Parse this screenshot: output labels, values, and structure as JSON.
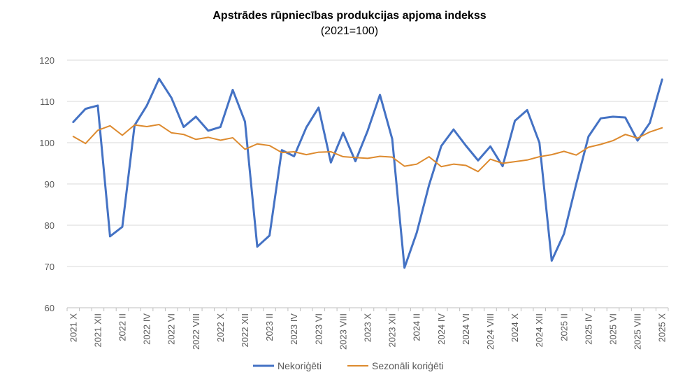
{
  "chart_data": {
    "type": "line",
    "title": "Apstrādes rūpniecības produkcijas apjoma indekss",
    "subtitle": "(2021=100)",
    "xlabel": "",
    "ylabel": "",
    "ylim": [
      60,
      120
    ],
    "yticks": [
      60,
      70,
      80,
      90,
      100,
      110,
      120
    ],
    "grid": true,
    "legend_position": "bottom",
    "x_tick_labels": [
      "2021 X",
      "2021 XII",
      "2022  II",
      "2022 IV",
      "2022 VI",
      "2022 VIII",
      "2022 X",
      "2022 XII",
      "2023  II",
      "2023 IV",
      "2023 VI",
      "2023 VIII",
      "2023 X",
      "2023 XII",
      "2024 II",
      "2024 IV",
      "2024 VI",
      "2024 VIII",
      "2024 X",
      "2024 XII",
      "2025 II",
      "2025 IV",
      "2025 VI",
      "2025 VIII",
      "2025 X"
    ],
    "series": [
      {
        "name": "Nekoriģēti",
        "color": "#4472c4",
        "values": [
          105.0,
          108.2,
          109.0,
          77.3,
          79.6,
          104.2,
          109.0,
          115.5,
          110.9,
          103.8,
          106.3,
          102.9,
          103.8,
          112.8,
          105.1,
          74.8,
          77.5,
          98.2,
          96.7,
          103.7,
          108.5,
          95.2,
          102.4,
          95.5,
          102.9,
          111.6,
          100.9,
          69.7,
          78.2,
          89.7,
          99.2,
          103.2,
          99.3,
          95.7,
          99.1,
          94.3,
          105.3,
          107.9,
          100.0,
          71.4,
          77.9,
          90.0,
          101.5,
          105.9,
          106.3,
          106.1,
          100.5,
          104.8,
          115.3
        ]
      },
      {
        "name": "Sezonāli koriģēti",
        "color": "#dd8a2e",
        "values": [
          101.5,
          99.8,
          103.0,
          104.1,
          101.8,
          104.3,
          103.9,
          104.4,
          102.4,
          102.0,
          100.8,
          101.3,
          100.6,
          101.2,
          98.4,
          99.7,
          99.3,
          97.6,
          97.8,
          97.1,
          97.7,
          97.8,
          96.6,
          96.4,
          96.2,
          96.7,
          96.5,
          94.3,
          94.8,
          96.6,
          94.2,
          94.8,
          94.5,
          93.0,
          96.0,
          95.0,
          95.4,
          95.8,
          96.6,
          97.1,
          97.9,
          97.0,
          98.9,
          99.6,
          100.5,
          102.0,
          101.1,
          102.6,
          103.6
        ]
      }
    ]
  }
}
